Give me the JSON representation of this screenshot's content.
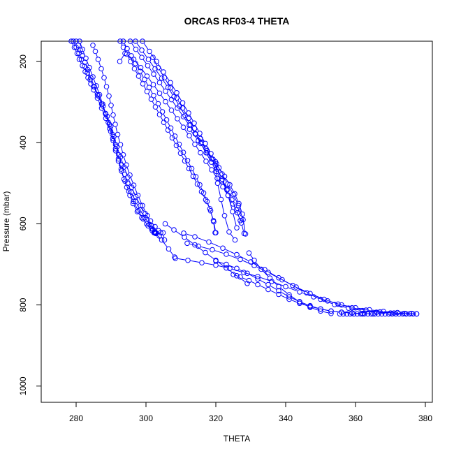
{
  "chart_data": {
    "type": "scatter",
    "title": "ORCAS RF03-4 THETA",
    "xlabel": "THETA",
    "ylabel": "Pressure (mbar)",
    "xlim": [
      270,
      382
    ],
    "ylim": [
      1040,
      150
    ],
    "y_reversed": true,
    "x_ticks": [
      280,
      300,
      320,
      340,
      360,
      380
    ],
    "y_ticks": [
      200,
      400,
      600,
      800,
      1000
    ],
    "grid": false,
    "legend": "none",
    "marker": "open-circle",
    "color": "#0000ff",
    "series": [
      {
        "x": [
          278.6,
          279.5,
          280.3,
          280.9,
          281.8,
          282.6,
          283.4,
          284.2,
          285.0,
          286.1,
          287.3,
          288.5,
          289.6,
          290.5,
          291.3,
          292.1,
          292.9,
          293.7,
          294.5,
          295.4,
          296.3,
          297.5,
          298.8,
          300.2,
          301.6,
          302.4,
          302.8
        ],
        "y": [
          150,
          165,
          180,
          195,
          210,
          225,
          240,
          255,
          270,
          290,
          315,
          340,
          365,
          390,
          415,
          440,
          465,
          490,
          510,
          530,
          550,
          570,
          585,
          600,
          612,
          620,
          622
        ]
      },
      {
        "x": [
          279.2,
          280.0,
          280.8,
          281.5,
          282.4,
          283.2,
          284.0,
          285.0,
          286.1,
          287.3,
          288.5,
          289.5,
          290.4,
          291.3,
          292.2,
          293.0,
          293.9,
          294.8,
          295.8,
          297.0,
          298.3,
          299.7,
          301.0,
          302.0,
          302.6
        ],
        "y": [
          150,
          165,
          180,
          195,
          212,
          228,
          245,
          262,
          282,
          305,
          330,
          355,
          380,
          405,
          430,
          455,
          478,
          500,
          522,
          545,
          566,
          585,
          602,
          614,
          620
        ]
      },
      {
        "x": [
          280.0,
          280.6,
          281.2,
          281.8,
          282.5,
          283.3,
          284.2,
          285.2,
          286.4,
          287.7,
          288.9,
          289.9,
          290.8,
          291.7,
          292.7,
          293.7,
          294.8,
          295.9,
          297.1,
          298.4,
          299.8,
          301.3,
          302.6,
          303.6,
          304.2
        ],
        "y": [
          150,
          160,
          172,
          186,
          202,
          220,
          240,
          262,
          285,
          310,
          335,
          360,
          385,
          410,
          435,
          460,
          485,
          510,
          533,
          555,
          575,
          593,
          607,
          617,
          622
        ]
      },
      {
        "x": [
          281.0,
          281.8,
          282.8,
          283.8,
          284.8,
          285.8,
          286.7,
          287.6,
          288.4,
          289.2,
          289.9,
          290.6,
          291.3,
          292.1,
          293.0,
          294.0,
          295.1,
          296.4,
          297.8,
          299.2,
          300.6,
          301.8,
          302.6
        ],
        "y": [
          150,
          170,
          192,
          215,
          238,
          260,
          282,
          305,
          328,
          350,
          372,
          395,
          420,
          445,
          470,
          495,
          520,
          545,
          568,
          588,
          605,
          617,
          622
        ]
      },
      {
        "x": [
          284.8,
          285.5,
          286.3,
          287.2,
          288.0,
          288.7,
          289.4,
          290.0,
          290.6,
          291.2,
          291.9,
          292.7,
          293.5,
          294.4,
          295.4,
          296.5,
          297.7,
          299.0,
          300.4,
          301.6,
          302.3
        ],
        "y": [
          160,
          175,
          195,
          218,
          240,
          262,
          285,
          308,
          332,
          355,
          380,
          405,
          430,
          455,
          480,
          505,
          530,
          555,
          580,
          605,
          622
        ]
      },
      {
        "x": [
          304.9,
          305.3,
          303.8,
          302.8,
          302.5
        ],
        "y": [
          622,
          640,
          630,
          624,
          622
        ]
      },
      {
        "x": [
          292.6,
          293.5,
          294.5,
          295.6,
          296.7,
          297.9,
          299.1,
          300.3,
          301.5,
          302.7,
          303.9,
          305.1,
          306.3,
          307.5,
          308.7,
          309.9,
          311.1,
          312.3,
          313.5,
          314.7,
          315.9,
          317.1,
          318.3,
          319.3,
          319.8
        ],
        "y": [
          150,
          165,
          182,
          200,
          218,
          236,
          255,
          274,
          293,
          312,
          331,
          350,
          369,
          388,
          407,
          426,
          445,
          464,
          483,
          502,
          521,
          541,
          563,
          592,
          622
        ]
      },
      {
        "x": [
          293.5,
          294.6,
          295.8,
          297.0,
          298.3,
          299.6,
          300.9,
          302.2,
          303.5,
          304.7,
          305.9,
          307.1,
          308.3,
          309.5,
          310.7,
          311.9,
          313.1,
          314.3,
          315.4,
          316.5,
          317.5,
          318.5,
          319.4,
          320.0
        ],
        "y": [
          150,
          168,
          186,
          205,
          224,
          244,
          264,
          284,
          304,
          324,
          344,
          364,
          384,
          404,
          424,
          444,
          464,
          484,
          504,
          524,
          545,
          568,
          595,
          622
        ]
      },
      {
        "x": [
          292.5,
          294.0,
          296.5,
          298.5,
          300.3,
          302.1,
          303.9,
          305.6,
          307.3,
          309.0,
          310.7,
          312.4,
          314.0,
          315.6,
          317.2,
          318.8,
          320.4,
          322.0,
          323.5,
          324.9,
          326.2,
          327.3,
          328.1
        ],
        "y": [
          200,
          180,
          195,
          215,
          236,
          257,
          278,
          299,
          320,
          341,
          362,
          383,
          404,
          425,
          446,
          467,
          488,
          509,
          530,
          551,
          573,
          598,
          624
        ]
      },
      {
        "x": [
          295.5,
          297.1,
          298.8,
          300.5,
          302.2,
          303.9,
          305.6,
          307.3,
          309.0,
          310.7,
          312.4,
          314.1,
          315.8,
          317.5,
          319.2,
          320.9,
          322.5,
          324.0,
          325.4,
          326.6,
          327.6,
          328.5
        ],
        "y": [
          150,
          170,
          190,
          210,
          231,
          252,
          273,
          294,
          315,
          336,
          357,
          378,
          399,
          420,
          441,
          462,
          483,
          504,
          526,
          550,
          576,
          625
        ]
      },
      {
        "x": [
          297.0,
          298.8,
          300.7,
          302.6,
          304.5,
          306.3,
          308.0,
          309.6,
          311.2,
          312.7,
          314.2,
          315.7,
          317.2,
          318.7,
          320.2,
          321.7,
          323.2,
          324.6,
          325.9,
          327.0
        ],
        "y": [
          150,
          172,
          195,
          218,
          241,
          264,
          287,
          310,
          333,
          356,
          379,
          402,
          425,
          448,
          471,
          494,
          517,
          541,
          566,
          592
        ]
      },
      {
        "x": [
          299.0,
          301.0,
          303.0,
          305.0,
          307.0,
          308.8,
          310.5,
          312.2,
          313.8,
          315.4,
          317.0,
          318.6,
          320.2,
          321.8,
          323.4,
          325.0,
          326.5,
          327.8
        ],
        "y": [
          150,
          175,
          200,
          226,
          252,
          277,
          302,
          327,
          352,
          377,
          402,
          427,
          452,
          477,
          502,
          528,
          555,
          590
        ]
      },
      {
        "x": [
          302.0,
          303.5,
          305.3,
          307.0,
          308.8,
          310.5,
          312.2,
          313.9,
          315.6,
          317.2,
          318.8,
          320.3,
          321.8,
          323.2
        ],
        "y": [
          190,
          215,
          240,
          265,
          290,
          315,
          340,
          365,
          390,
          415,
          440,
          465,
          490,
          515
        ]
      },
      {
        "x": [
          312.5,
          315.0,
          317.5,
          319.9,
          321.8,
          323.5,
          324.8,
          326.0
        ],
        "y": [
          367,
          395,
          425,
          455,
          490,
          530,
          570,
          610
        ]
      },
      {
        "x": [
          319.9,
          320.5,
          321.5,
          322.5,
          323.8,
          325.5
        ],
        "y": [
          447,
          500,
          540,
          580,
          620,
          640
        ]
      },
      {
        "x": [
          308.4,
          312.0,
          316.0,
          320.0,
          324.0,
          328.0,
          332.0,
          336.0,
          340.0,
          344.0,
          348.0,
          352.0,
          356.0,
          360.0,
          364.0,
          368.0,
          372.0,
          376.0
        ],
        "y": [
          685,
          690,
          696,
          702,
          710,
          720,
          730,
          742,
          755,
          768,
          780,
          790,
          800,
          807,
          812,
          816,
          819,
          821
        ]
      },
      {
        "x": [
          310.8,
          314.0,
          318.0,
          322.0,
          326.0,
          330.0,
          334.0,
          338.0,
          342.0,
          346.0,
          350.0,
          354.0,
          358.0,
          362.0,
          366.0,
          370.0,
          374.0,
          377.5
        ],
        "y": [
          623,
          632,
          645,
          660,
          676,
          694,
          713,
          733,
          752,
          770,
          786,
          799,
          808,
          814,
          818,
          820,
          821,
          822
        ]
      },
      {
        "x": [
          311.8,
          315.0,
          319.0,
          323.0,
          327.0,
          331.0,
          335.0,
          339.0,
          343.0,
          347.0,
          351.0,
          355.0,
          359.0,
          363.0,
          367.0,
          371.0,
          374.5
        ],
        "y": [
          648,
          655,
          664,
          675,
          688,
          703,
          720,
          738,
          756,
          772,
          786,
          798,
          807,
          813,
          817,
          820,
          822
        ]
      },
      {
        "x": [
          320.0,
          323.0,
          326.0,
          329.0,
          332.0,
          335.0,
          338.0,
          341.0,
          344.0,
          347.0,
          350.0,
          353.0,
          356.0,
          359.0,
          362.0
        ],
        "y": [
          692,
          700,
          710,
          722,
          736,
          750,
          765,
          780,
          792,
          802,
          810,
          815,
          818,
          820,
          822
        ]
      },
      {
        "x": [
          325.0,
          327.0,
          329.5,
          332.0,
          335.0,
          338.0,
          341.0,
          344.0,
          347.0,
          350.0,
          353.0,
          356.0,
          359.0,
          362.0,
          365.0
        ],
        "y": [
          725,
          731,
          740,
          750,
          762,
          774,
          786,
          796,
          804,
          810,
          815,
          818,
          820,
          821,
          822
        ]
      },
      {
        "x": [
          329.5,
          331.0,
          333.0,
          335.5,
          338.0,
          341.0,
          344.0,
          347.0,
          350.0,
          353.0
        ],
        "y": [
          672,
          690,
          712,
          734,
          755,
          775,
          793,
          806,
          815,
          821
        ]
      },
      {
        "x": [
          305.5,
          308.0,
          311.0,
          314.0,
          317.0,
          320.0,
          323.0,
          326.0,
          329.0
        ],
        "y": [
          600,
          615,
          633,
          652,
          671,
          690,
          709,
          728,
          747
        ]
      },
      {
        "x": [
          302.6,
          304.5,
          306.5,
          308.2
        ],
        "y": [
          622,
          640,
          662,
          682
        ]
      },
      {
        "x": [
          355.5,
          356.5,
          357.5,
          358.5,
          359.5,
          360.5,
          361.5,
          362.5,
          363.5,
          364.5,
          365.5,
          366.5,
          367.5,
          368.5,
          369.5,
          370.5,
          371.5,
          372.5,
          373.5,
          374.5,
          375.5,
          376.5,
          377.5
        ],
        "y": [
          822,
          822,
          822,
          822,
          822,
          822,
          822,
          822,
          822,
          822,
          822,
          822,
          822,
          822,
          822,
          822,
          822,
          822,
          822,
          822,
          822,
          822,
          822
        ]
      }
    ]
  }
}
